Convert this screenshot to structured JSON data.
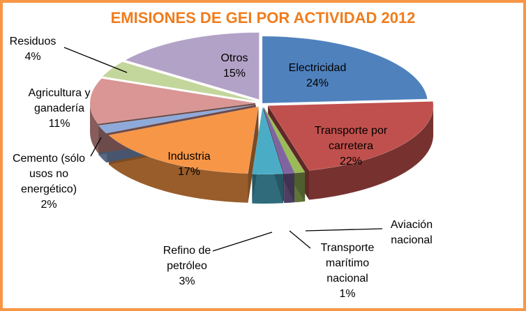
{
  "chart_data": {
    "type": "pie",
    "title": "EMISIONES DE GEI POR ACTIVIDAD  2012",
    "style": "3d-exploded",
    "title_color": "#F07C1C",
    "border_color": "#F79646",
    "slices": [
      {
        "label": [
          "Electricidad"
        ],
        "percent_text": "24%",
        "value": 24,
        "color": "#4F81BD"
      },
      {
        "label": [
          "Transporte por",
          "carretera"
        ],
        "percent_text": "22%",
        "value": 22,
        "color": "#C0504D"
      },
      {
        "label": [
          "Aviación",
          "nacional"
        ],
        "percent_text": "",
        "value": 1,
        "color": "#9BBB59"
      },
      {
        "label": [
          "Transporte",
          "marítimo",
          "nacional"
        ],
        "percent_text": "1%",
        "value": 1,
        "color": "#8064A2"
      },
      {
        "label": [
          "Refino de",
          "petróleo"
        ],
        "percent_text": "3%",
        "value": 3,
        "color": "#4BACC6"
      },
      {
        "label": [
          "Industria"
        ],
        "percent_text": "17%",
        "value": 17,
        "color": "#F79646"
      },
      {
        "label": [
          "Cemento (sólo",
          "usos no",
          "energético)"
        ],
        "percent_text": "2%",
        "value": 2,
        "color": "#8EAADB"
      },
      {
        "label": [
          "Agricultura y",
          "ganadería"
        ],
        "percent_text": "11%",
        "value": 11,
        "color": "#D99694"
      },
      {
        "label": [
          "Residuos"
        ],
        "percent_text": "4%",
        "value": 4,
        "color": "#C3D69B"
      },
      {
        "label": [
          "Otros"
        ],
        "percent_text": "15%",
        "value": 15,
        "color": "#B3A2C7"
      }
    ]
  }
}
